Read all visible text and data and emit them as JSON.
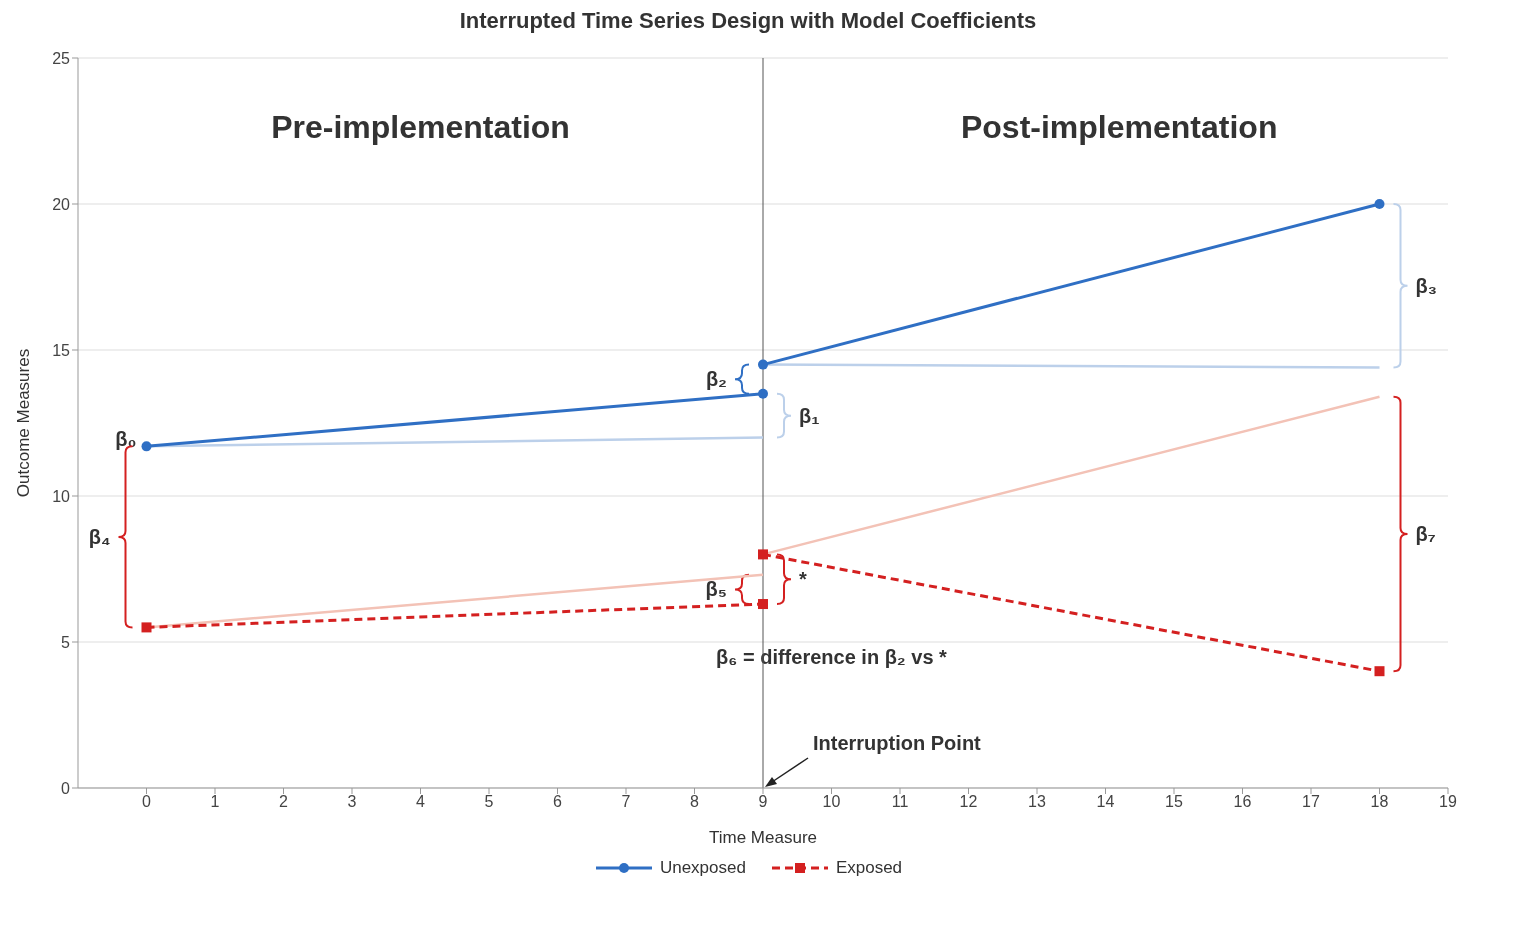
{
  "chart_data": {
    "type": "line",
    "title": "Interrupted Time Series Design with Model Coefficients",
    "xlabel": "Time Measure",
    "ylabel": "Outcome Measures",
    "xlim": [
      -1,
      19
    ],
    "xticks": [
      0,
      1,
      2,
      3,
      4,
      5,
      6,
      7,
      8,
      9,
      10,
      11,
      12,
      13,
      14,
      15,
      16,
      17,
      18,
      19
    ],
    "ylim": [
      0,
      25
    ],
    "yticks": [
      0,
      5,
      10,
      15,
      20,
      25
    ],
    "grid": "y",
    "legend": "bottom",
    "series": [
      {
        "name": "Unexposed",
        "color": "#2f6fc4",
        "x": [
          0,
          9
        ],
        "values": [
          11.7,
          13.5
        ],
        "marker": "circle",
        "line_style": "solid"
      },
      {
        "name": "Exposed",
        "color": "#d42020",
        "x": [
          0,
          9
        ],
        "values": [
          5.5,
          6.3
        ],
        "marker": "square",
        "line_style": "dashed"
      },
      {
        "color": "#2f6fc4",
        "x": [
          9,
          18
        ],
        "values": [
          14.5,
          20
        ],
        "marker": "circle",
        "line_style": "solid"
      },
      {
        "color": "#d42020",
        "x": [
          9,
          18
        ],
        "values": [
          8,
          4
        ],
        "marker": "square",
        "line_style": "dashed"
      },
      {
        "color": "#bcd0ea",
        "x": [
          0,
          9
        ],
        "values": [
          11.7,
          12
        ],
        "marker": "none",
        "line_style": "solid"
      },
      {
        "color": "#bcd0ea",
        "x": [
          9,
          18
        ],
        "values": [
          14.5,
          14.4
        ],
        "marker": "none",
        "line_style": "solid"
      },
      {
        "color": "#f3c2b6",
        "x": [
          0,
          9
        ],
        "values": [
          5.5,
          7.3
        ],
        "marker": "none",
        "line_style": "solid"
      },
      {
        "color": "#f3c2b6",
        "x": [
          9,
          18
        ],
        "values": [
          8,
          13.4
        ],
        "marker": "none",
        "line_style": "solid"
      }
    ],
    "ref_lines": [
      {
        "axis": "x",
        "value": 9,
        "color": "#555555"
      }
    ],
    "annotations": [
      "Pre-implementation",
      "Post-implementation",
      "β₆ = difference in β₂ vs *",
      "β₀",
      "β₁",
      "β₂",
      "β₃",
      "β₄",
      "β₅",
      "*",
      "β₇",
      "Interruption Point"
    ]
  }
}
